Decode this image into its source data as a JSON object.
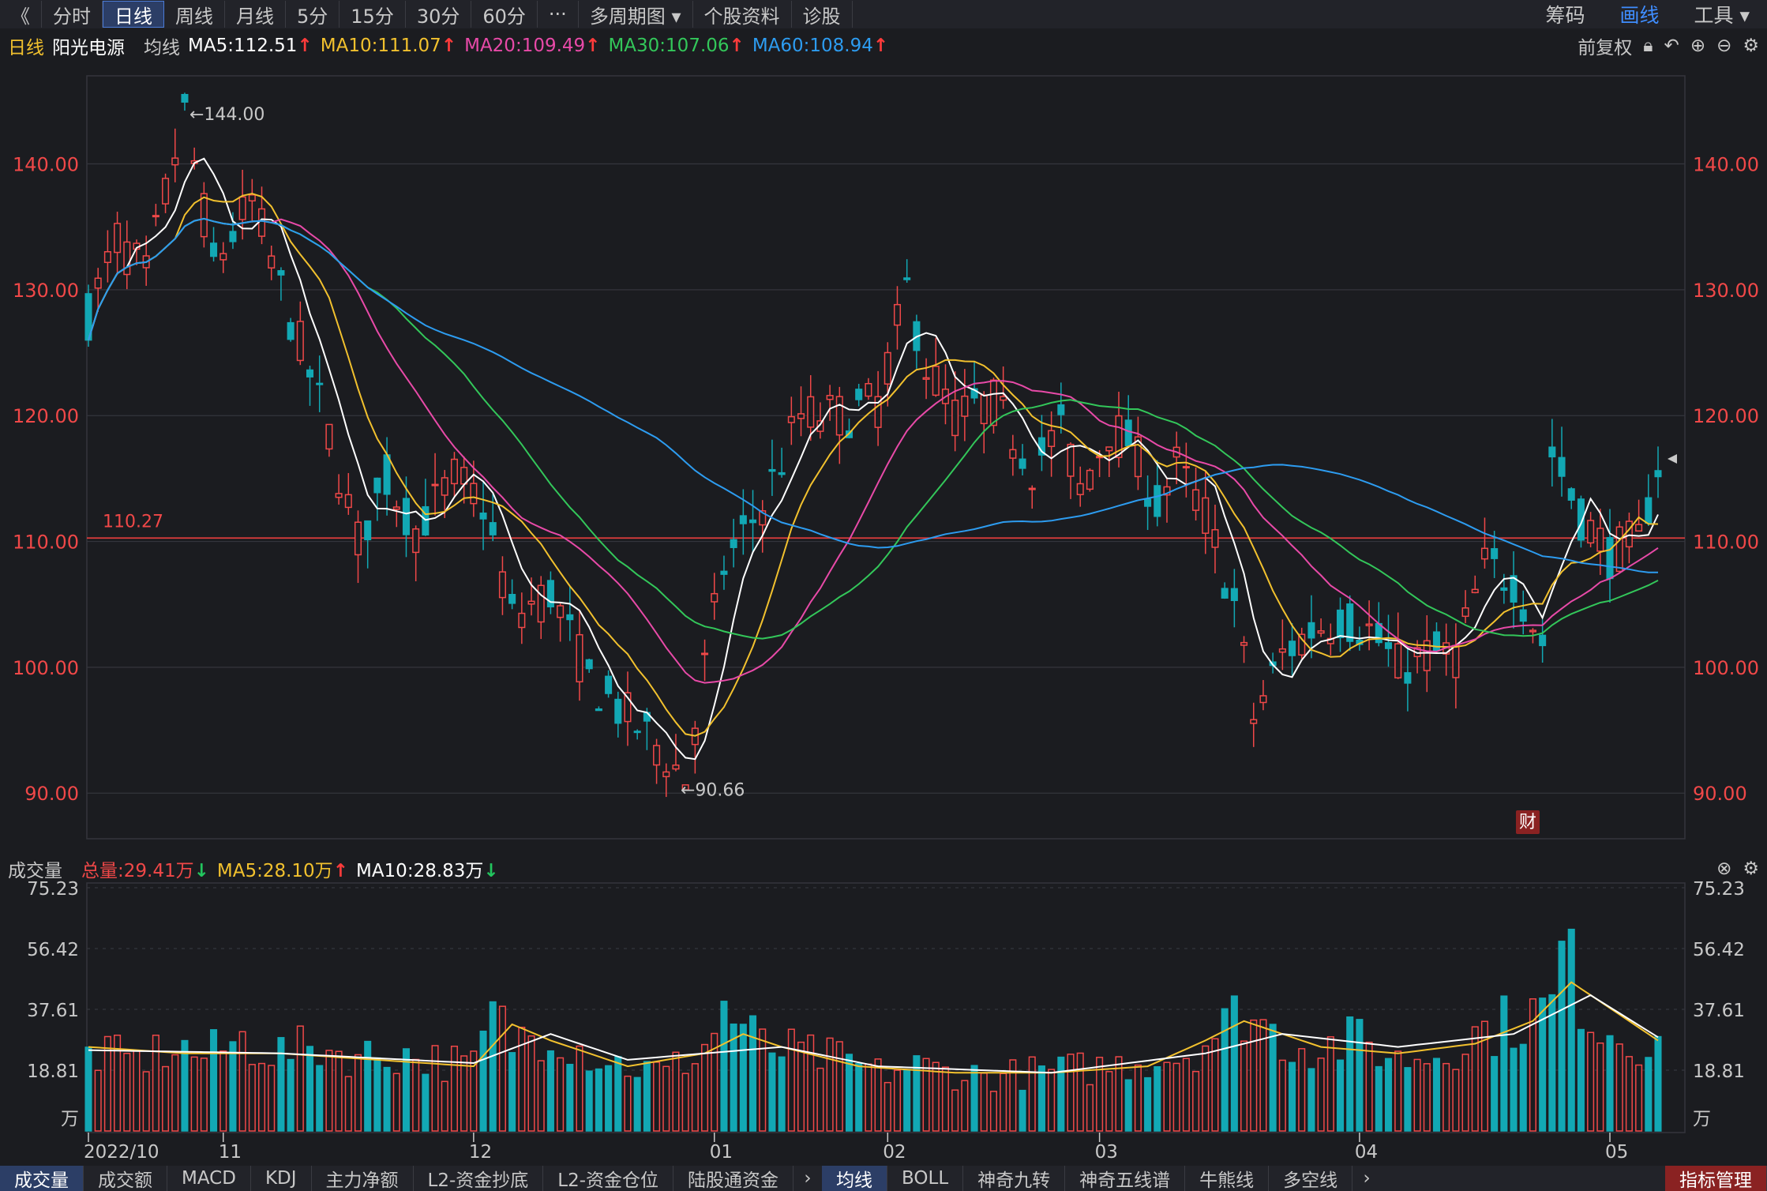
{
  "toolbar": {
    "back": "《",
    "periods": [
      "分时",
      "日线",
      "周线",
      "月线",
      "5分",
      "15分",
      "30分",
      "60分",
      "···",
      "多周期图 ▾",
      "个股资料",
      "诊股"
    ],
    "active_period": 1,
    "right": [
      "筹码",
      "画线",
      "工具 ▾"
    ],
    "right_highlight": 1
  },
  "info": {
    "period": "日线",
    "stock_name": "阳光电源",
    "ma_label": "均线",
    "ma5": "MA5:112.51",
    "ma10": "MA10:111.07",
    "ma20": "MA20:109.49",
    "ma30": "MA30:107.06",
    "ma60": "MA60:108.94",
    "adjust": "前复权"
  },
  "volume_info": {
    "title": "成交量",
    "total": "总量:29.41万",
    "ma5": "MA5:28.10万",
    "ma10": "MA10:28.83万"
  },
  "colors": {
    "up": "#f04848",
    "down": "#12a8b4",
    "ma5": "#ffffff",
    "ma10": "#f2c12e",
    "ma20": "#e84aa8",
    "ma30": "#33c75a",
    "ma60": "#2d9cf0",
    "grid": "#34353c",
    "ref_line": "#e03c3c"
  },
  "chart_data": {
    "type": "candlestick",
    "price_axis": {
      "ticks": [
        "140.00",
        "130.00",
        "120.00",
        "110.00",
        "100.00",
        "90.00"
      ],
      "tick_values": [
        140,
        130,
        120,
        110,
        100,
        90
      ],
      "ylim": [
        86.5,
        147
      ]
    },
    "reference_line": {
      "value": 110.27,
      "label": "110.27"
    },
    "annotations": [
      {
        "text": "←144.00",
        "value": 144.0,
        "index": 10
      },
      {
        "text": "←90.66",
        "value": 90.66,
        "index": 61
      }
    ],
    "badge": "财",
    "x_labels": [
      {
        "text": "2022/10",
        "index": 0
      },
      {
        "text": "11",
        "index": 14
      },
      {
        "text": "12",
        "index": 40
      },
      {
        "text": "01",
        "index": 65
      },
      {
        "text": "02",
        "index": 83
      },
      {
        "text": "03",
        "index": 105
      },
      {
        "text": "04",
        "index": 132
      },
      {
        "text": "05",
        "index": 158
      }
    ],
    "volume_axis": {
      "ticks": [
        "75.23",
        "56.42",
        "37.61",
        "18.81"
      ],
      "tick_values": [
        75.23,
        56.42,
        37.61,
        18.81
      ],
      "unit": "万",
      "ylim": [
        0,
        75.23
      ]
    },
    "n_bars": 164,
    "ohlc_keypoints": [
      [
        0,
        128
      ],
      [
        3,
        134
      ],
      [
        6,
        131
      ],
      [
        10,
        144
      ],
      [
        13,
        132
      ],
      [
        17,
        137
      ],
      [
        20,
        130
      ],
      [
        24,
        121
      ],
      [
        28,
        110
      ],
      [
        31,
        115
      ],
      [
        34,
        111
      ],
      [
        38,
        115
      ],
      [
        41,
        113
      ],
      [
        44,
        104
      ],
      [
        48,
        106
      ],
      [
        52,
        99
      ],
      [
        56,
        96
      ],
      [
        60,
        93
      ],
      [
        62,
        91
      ],
      [
        64,
        100
      ],
      [
        66,
        108
      ],
      [
        70,
        113
      ],
      [
        74,
        120
      ],
      [
        78,
        120
      ],
      [
        82,
        121
      ],
      [
        85,
        130
      ],
      [
        87,
        124
      ],
      [
        90,
        120
      ],
      [
        94,
        121
      ],
      [
        98,
        116
      ],
      [
        101,
        119
      ],
      [
        103,
        114
      ],
      [
        106,
        119
      ],
      [
        108,
        118
      ],
      [
        111,
        113
      ],
      [
        113,
        116
      ],
      [
        116,
        112
      ],
      [
        119,
        105
      ],
      [
        121,
        96
      ],
      [
        124,
        101
      ],
      [
        127,
        103
      ],
      [
        130,
        104
      ],
      [
        133,
        103
      ],
      [
        136,
        100
      ],
      [
        139,
        101
      ],
      [
        142,
        101
      ],
      [
        145,
        108
      ],
      [
        148,
        107
      ],
      [
        151,
        102
      ],
      [
        152,
        117
      ],
      [
        155,
        112
      ],
      [
        158,
        109
      ],
      [
        161,
        110
      ],
      [
        163,
        116
      ]
    ],
    "volume_keypoints": [
      [
        0,
        24
      ],
      [
        5,
        22
      ],
      [
        9,
        26
      ],
      [
        12,
        23
      ],
      [
        16,
        28
      ],
      [
        20,
        24
      ],
      [
        24,
        26
      ],
      [
        28,
        23
      ],
      [
        32,
        24
      ],
      [
        36,
        22
      ],
      [
        40,
        20
      ],
      [
        42,
        36
      ],
      [
        44,
        28
      ],
      [
        48,
        32
      ],
      [
        52,
        24
      ],
      [
        56,
        20
      ],
      [
        60,
        18
      ],
      [
        64,
        26
      ],
      [
        66,
        38
      ],
      [
        70,
        26
      ],
      [
        74,
        24
      ],
      [
        78,
        22
      ],
      [
        82,
        18
      ],
      [
        86,
        20
      ],
      [
        90,
        18
      ],
      [
        94,
        17
      ],
      [
        98,
        18
      ],
      [
        102,
        19
      ],
      [
        106,
        20
      ],
      [
        110,
        22
      ],
      [
        114,
        24
      ],
      [
        118,
        32
      ],
      [
        120,
        38
      ],
      [
        124,
        28
      ],
      [
        128,
        26
      ],
      [
        132,
        28
      ],
      [
        136,
        22
      ],
      [
        140,
        24
      ],
      [
        144,
        30
      ],
      [
        148,
        34
      ],
      [
        152,
        38
      ],
      [
        153,
        56
      ],
      [
        156,
        36
      ],
      [
        160,
        28
      ],
      [
        163,
        29
      ]
    ],
    "volume_ma5_keypoints": [
      [
        0,
        26
      ],
      [
        10,
        24
      ],
      [
        20,
        24
      ],
      [
        30,
        22
      ],
      [
        40,
        20
      ],
      [
        44,
        33
      ],
      [
        48,
        28
      ],
      [
        56,
        20
      ],
      [
        64,
        24
      ],
      [
        68,
        30
      ],
      [
        72,
        26
      ],
      [
        80,
        20
      ],
      [
        90,
        18
      ],
      [
        100,
        18
      ],
      [
        110,
        20
      ],
      [
        116,
        28
      ],
      [
        120,
        34
      ],
      [
        128,
        26
      ],
      [
        136,
        24
      ],
      [
        144,
        27
      ],
      [
        150,
        34
      ],
      [
        154,
        46
      ],
      [
        158,
        38
      ],
      [
        163,
        28
      ]
    ],
    "volume_ma10_keypoints": [
      [
        0,
        25
      ],
      [
        20,
        24
      ],
      [
        40,
        21
      ],
      [
        48,
        30
      ],
      [
        56,
        22
      ],
      [
        64,
        24
      ],
      [
        72,
        26
      ],
      [
        82,
        20
      ],
      [
        100,
        18
      ],
      [
        116,
        24
      ],
      [
        124,
        30
      ],
      [
        136,
        26
      ],
      [
        148,
        30
      ],
      [
        156,
        42
      ],
      [
        163,
        29
      ]
    ]
  },
  "bottom_tabs": {
    "left": [
      "成交量",
      "成交额",
      "MACD",
      "KDJ",
      "主力净额",
      "L2-资金抄底",
      "L2-资金仓位",
      "陆股通资金"
    ],
    "left_active": 0,
    "right": [
      "均线",
      "BOLL",
      "神奇九转",
      "神奇五线谱",
      "牛熊线",
      "多空线"
    ],
    "right_active": 0,
    "corner": "指标管理"
  }
}
